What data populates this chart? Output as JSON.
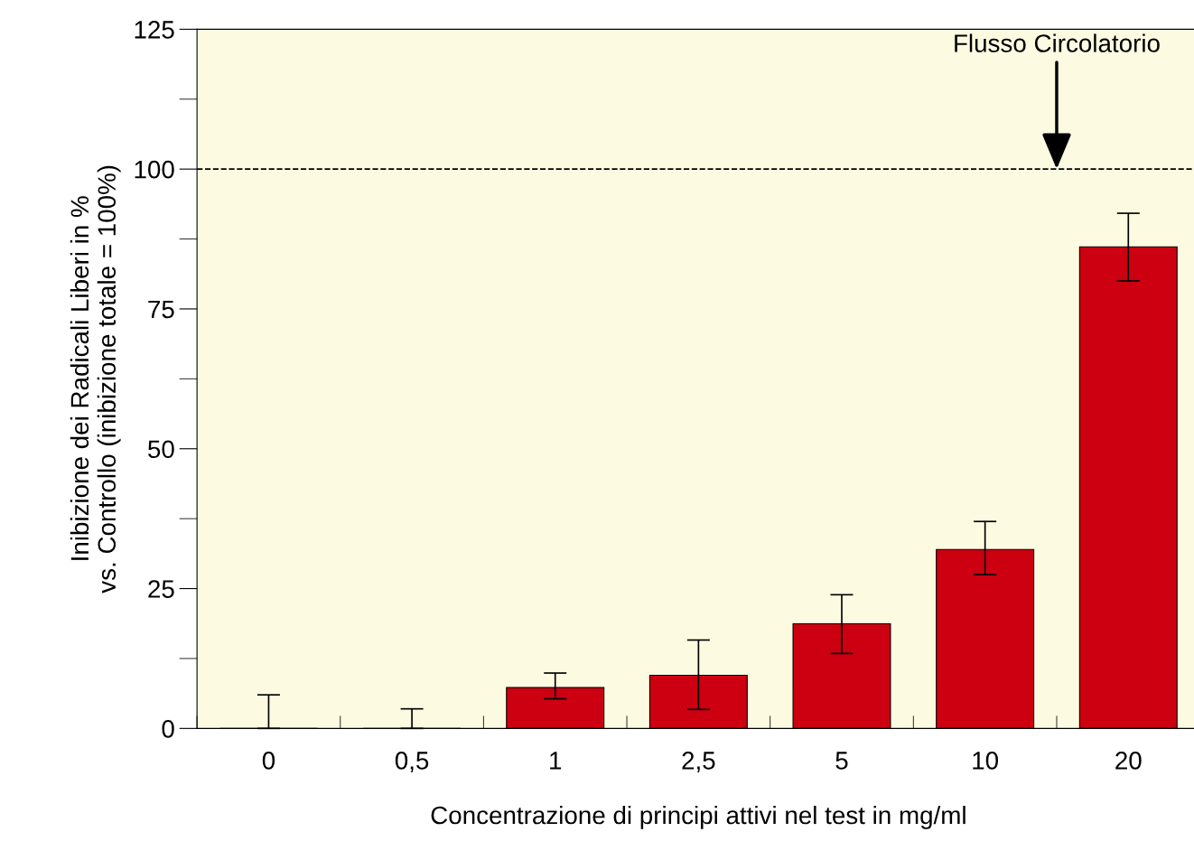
{
  "chart_data": {
    "type": "bar",
    "xlabel": "Concentrazione di principi attivi nel test in mg/ml",
    "ylabel": "Inibizione dei Radicali Liberi in %\nvs. Controllo (inibizione totale = 100%)",
    "categories": [
      "0",
      "0,5",
      "1",
      "2,5",
      "5",
      "10",
      "20"
    ],
    "values": [
      0,
      0,
      7.3,
      9.5,
      18.7,
      32,
      86.1
    ],
    "errors": [
      [
        0,
        6
      ],
      [
        0,
        3.5
      ],
      [
        5.3,
        9.9
      ],
      [
        3.4,
        15.8
      ],
      [
        13.4,
        23.9
      ],
      [
        27.5,
        37
      ],
      [
        80,
        92.1
      ]
    ],
    "color": "#cc0010",
    "ylim": [
      0,
      125
    ],
    "yticks": [
      0,
      25,
      50,
      75,
      100,
      125
    ],
    "ref_lines": [
      {
        "axis": "y",
        "value": 100,
        "label": null,
        "color": "#000000",
        "line_style": "dashed"
      }
    ],
    "annotations": [
      {
        "text": "Flusso Circolatorio",
        "y": 100
      }
    ],
    "grid": false
  }
}
